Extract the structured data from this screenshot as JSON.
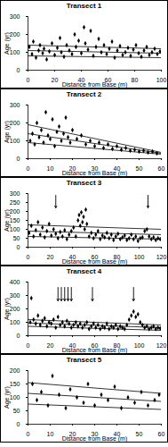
{
  "chart_data": [
    {
      "type": "scatter",
      "title": "Transect 1",
      "x_label": "Distance from Base (m)",
      "y_label": "Age (yr)",
      "xlim": [
        0,
        100
      ],
      "xticks": [
        0,
        20,
        40,
        60,
        80,
        100
      ],
      "ylim": [
        0,
        300
      ],
      "yticks": [
        0,
        100,
        200,
        300
      ],
      "grid": false,
      "points": {
        "color": "#000000",
        "marker": "diamond",
        "x": [
          1,
          3,
          4,
          6,
          8,
          9,
          11,
          12,
          14,
          16,
          18,
          20,
          22,
          24,
          25,
          27,
          29,
          31,
          33,
          35,
          36,
          38,
          40,
          42,
          43,
          45,
          47,
          49,
          51,
          53,
          55,
          57,
          59,
          61,
          63,
          65,
          67,
          69,
          71,
          73,
          75,
          77,
          79,
          81,
          83,
          85,
          87,
          89,
          91,
          93,
          95,
          97,
          99
        ],
        "values": [
          130,
          90,
          160,
          70,
          110,
          140,
          95,
          120,
          60,
          105,
          150,
          85,
          125,
          180,
          100,
          75,
          140,
          110,
          90,
          200,
          130,
          165,
          95,
          240,
          150,
          115,
          220,
          80,
          130,
          175,
          100,
          140,
          90,
          120,
          160,
          70,
          110,
          135,
          85,
          100,
          125,
          80,
          115,
          140,
          95,
          75,
          110,
          130,
          85,
          100,
          120,
          90,
          105
        ]
      },
      "lines": [
        {
          "x": [
            0,
            100
          ],
          "values": [
            140,
            120
          ],
          "color": "#000000",
          "line_style": "solid"
        },
        {
          "x": [
            0,
            100
          ],
          "values": [
            110,
            95
          ],
          "color": "#000000",
          "line_style": "solid"
        },
        {
          "x": [
            0,
            100
          ],
          "values": [
            80,
            70
          ],
          "color": "#000000",
          "line_style": "solid"
        }
      ],
      "arrows": []
    },
    {
      "type": "scatter",
      "title": "Transect 2",
      "x_label": "Distance from Base (m)",
      "y_label": "Age (yr)",
      "xlim": [
        0,
        60
      ],
      "xticks": [
        0,
        10,
        20,
        30,
        40,
        50,
        60
      ],
      "ylim": [
        0,
        300
      ],
      "yticks": [
        0,
        100,
        200,
        300
      ],
      "grid": false,
      "points": {
        "color": "#000000",
        "marker": "diamond",
        "x": [
          1,
          2,
          3,
          4,
          5,
          6,
          7,
          8,
          9,
          10,
          11,
          12,
          13,
          14,
          15,
          16,
          17,
          18,
          19,
          20,
          22,
          24,
          26,
          28,
          30,
          32,
          34,
          36,
          38,
          40,
          42,
          44,
          46,
          48,
          50,
          52,
          54,
          56,
          58
        ],
        "values": [
          100,
          140,
          80,
          200,
          120,
          160,
          90,
          260,
          130,
          110,
          220,
          70,
          150,
          180,
          100,
          140,
          230,
          120,
          90,
          160,
          110,
          130,
          80,
          100,
          70,
          90,
          60,
          80,
          55,
          70,
          50,
          60,
          45,
          50,
          40,
          45,
          35,
          40,
          30
        ]
      },
      "lines": [
        {
          "x": [
            0,
            60
          ],
          "values": [
            190,
            35
          ],
          "color": "#000000",
          "line_style": "solid"
        },
        {
          "x": [
            0,
            60
          ],
          "values": [
            140,
            30
          ],
          "color": "#000000",
          "line_style": "solid"
        },
        {
          "x": [
            0,
            60
          ],
          "values": [
            90,
            25
          ],
          "color": "#000000",
          "line_style": "solid"
        }
      ],
      "arrows": []
    },
    {
      "type": "scatter",
      "title": "Transect 3",
      "x_label": "Distance from Base (m)",
      "y_label": "Age (yr)",
      "xlim": [
        0,
        120
      ],
      "xticks": [
        0,
        20,
        40,
        60,
        80,
        100,
        120
      ],
      "ylim": [
        0,
        300
      ],
      "yticks": [
        0,
        50,
        100,
        150,
        200,
        250,
        300
      ],
      "grid": false,
      "points": {
        "color": "#000000",
        "marker": "diamond",
        "x": [
          1,
          3,
          5,
          7,
          9,
          11,
          13,
          15,
          17,
          19,
          21,
          23,
          25,
          27,
          29,
          31,
          33,
          35,
          37,
          39,
          41,
          43,
          45,
          46,
          47,
          48,
          49,
          50,
          51,
          52,
          53,
          55,
          57,
          59,
          61,
          63,
          65,
          67,
          69,
          71,
          73,
          75,
          77,
          79,
          81,
          83,
          85,
          87,
          89,
          91,
          93,
          95,
          97,
          99,
          101,
          103,
          105,
          107,
          109,
          111,
          113,
          115,
          117,
          119
        ],
        "values": [
          80,
          120,
          60,
          95,
          140,
          70,
          110,
          55,
          90,
          130,
          65,
          100,
          75,
          50,
          85,
          60,
          95,
          45,
          70,
          90,
          110,
          60,
          150,
          180,
          120,
          195,
          140,
          170,
          100,
          210,
          130,
          60,
          80,
          50,
          70,
          90,
          45,
          65,
          55,
          80,
          50,
          70,
          40,
          60,
          75,
          45,
          55,
          65,
          40,
          50,
          70,
          45,
          60,
          35,
          50,
          55,
          90,
          100,
          60,
          45,
          55,
          40,
          50,
          45
        ]
      },
      "lines": [
        {
          "x": [
            0,
            120
          ],
          "values": [
            125,
            100
          ],
          "color": "#000000",
          "line_style": "solid"
        },
        {
          "x": [
            0,
            120
          ],
          "values": [
            90,
            70
          ],
          "color": "#000000",
          "line_style": "solid"
        },
        {
          "x": [
            0,
            120
          ],
          "values": [
            60,
            45
          ],
          "color": "#000000",
          "line_style": "solid"
        }
      ],
      "arrows": [
        {
          "x": 25,
          "y_from": 290,
          "y_to": 220
        },
        {
          "x": 108,
          "y_from": 290,
          "y_to": 220
        }
      ]
    },
    {
      "type": "scatter",
      "title": "Transect 4",
      "x_label": "Distance from Base (m)",
      "y_label": "Age (yr)",
      "xlim": [
        0,
        120
      ],
      "xticks": [
        0,
        20,
        40,
        60,
        80,
        100,
        120
      ],
      "ylim": [
        0,
        400
      ],
      "yticks": [
        0,
        100,
        200,
        300,
        400
      ],
      "grid": false,
      "points": {
        "color": "#000000",
        "marker": "diamond",
        "x": [
          2,
          3,
          5,
          7,
          9,
          11,
          13,
          15,
          17,
          19,
          21,
          23,
          25,
          27,
          29,
          31,
          33,
          35,
          37,
          39,
          41,
          43,
          45,
          47,
          49,
          51,
          53,
          55,
          57,
          59,
          61,
          63,
          65,
          67,
          69,
          71,
          73,
          75,
          77,
          79,
          81,
          83,
          85,
          87,
          89,
          91,
          93,
          95,
          97,
          99,
          101,
          103,
          105,
          107,
          109,
          111,
          113,
          115,
          117,
          119
        ],
        "values": [
          100,
          280,
          120,
          90,
          150,
          80,
          110,
          130,
          70,
          100,
          90,
          120,
          60,
          140,
          80,
          100,
          70,
          110,
          90,
          60,
          80,
          100,
          70,
          90,
          60,
          80,
          100,
          50,
          70,
          90,
          60,
          80,
          50,
          70,
          60,
          90,
          50,
          70,
          60,
          80,
          50,
          70,
          60,
          50,
          80,
          120,
          150,
          180,
          140,
          160,
          100,
          80,
          60,
          70,
          50,
          60,
          70,
          50,
          60,
          55
        ]
      },
      "lines": [
        {
          "x": [
            0,
            120
          ],
          "values": [
            120,
            80
          ],
          "color": "#000000",
          "line_style": "solid"
        },
        {
          "x": [
            0,
            120
          ],
          "values": [
            95,
            60
          ],
          "color": "#000000",
          "line_style": "solid"
        },
        {
          "x": [
            0,
            120
          ],
          "values": [
            70,
            40
          ],
          "color": "#000000",
          "line_style": "solid"
        }
      ],
      "arrows": [
        {
          "x": 27,
          "y_from": 360,
          "y_to": 260
        },
        {
          "x": 30,
          "y_from": 360,
          "y_to": 260
        },
        {
          "x": 33,
          "y_from": 360,
          "y_to": 260
        },
        {
          "x": 36,
          "y_from": 360,
          "y_to": 260
        },
        {
          "x": 39,
          "y_from": 360,
          "y_to": 260
        },
        {
          "x": 58,
          "y_from": 360,
          "y_to": 260
        },
        {
          "x": 95,
          "y_from": 360,
          "y_to": 260
        }
      ]
    },
    {
      "type": "scatter",
      "title": "Transect 5",
      "x_label": "Distance from Base (m)",
      "y_label": "Age (yr)",
      "xlim": [
        0,
        60
      ],
      "xticks": [
        0,
        10,
        20,
        30,
        40,
        50,
        60
      ],
      "ylim": [
        0,
        200
      ],
      "yticks": [
        0,
        50,
        100,
        150,
        200
      ],
      "grid": false,
      "points": {
        "color": "#000000",
        "marker": "diamond",
        "x": [
          2,
          4,
          6,
          9,
          11,
          14,
          17,
          19,
          22,
          25,
          27,
          30,
          33,
          36,
          39,
          42,
          45,
          48,
          51,
          54,
          57,
          59
        ],
        "values": [
          150,
          90,
          120,
          70,
          180,
          110,
          60,
          130,
          100,
          80,
          150,
          70,
          110,
          90,
          140,
          60,
          100,
          80,
          120,
          70,
          90,
          110
        ]
      },
      "lines": [
        {
          "x": [
            0,
            60
          ],
          "values": [
            155,
            115
          ],
          "color": "#000000",
          "line_style": "solid"
        },
        {
          "x": [
            0,
            60
          ],
          "values": [
            115,
            85
          ],
          "color": "#000000",
          "line_style": "solid"
        },
        {
          "x": [
            0,
            60
          ],
          "values": [
            75,
            55
          ],
          "color": "#000000",
          "line_style": "solid"
        }
      ],
      "arrows": []
    }
  ]
}
